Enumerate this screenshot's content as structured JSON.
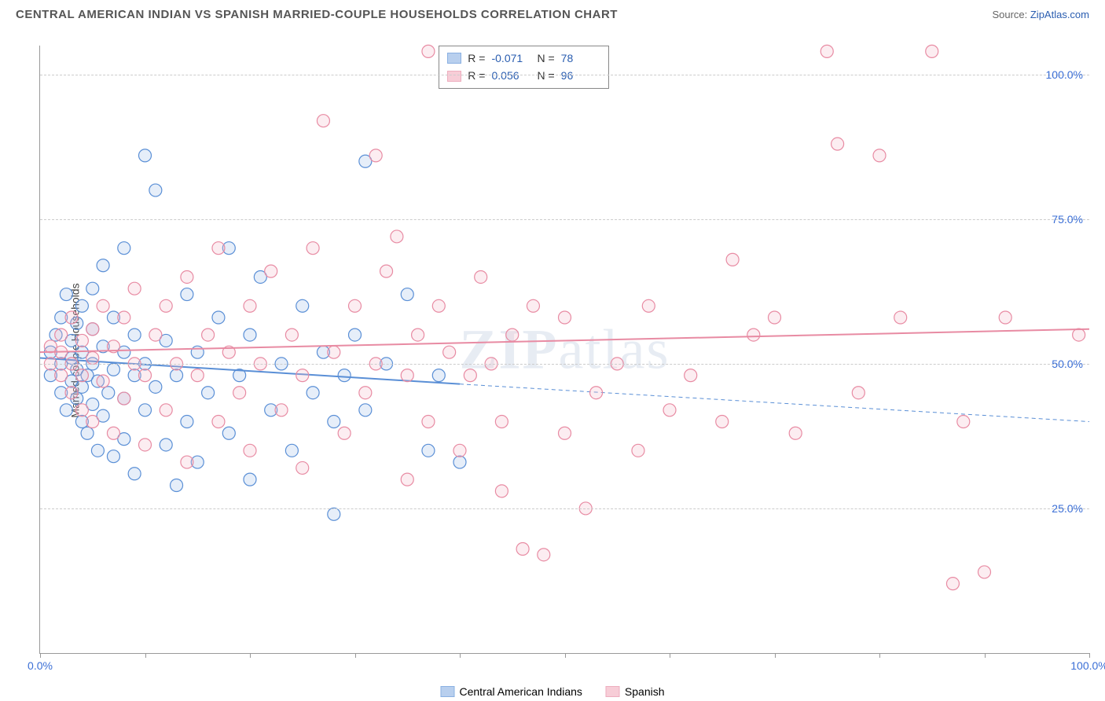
{
  "title": "CENTRAL AMERICAN INDIAN VS SPANISH MARRIED-COUPLE HOUSEHOLDS CORRELATION CHART",
  "source_prefix": "Source: ",
  "source_link": "ZipAtlas.com",
  "ylabel": "Married-couple Households",
  "watermark_a": "ZIP",
  "watermark_b": "atlas",
  "chart": {
    "type": "scatter",
    "background": "#ffffff",
    "grid_color": "#cccccc",
    "axis_color": "#999999",
    "xlim": [
      0,
      100
    ],
    "ylim": [
      0,
      105
    ],
    "yticks": [
      {
        "v": 25,
        "label": "25.0%"
      },
      {
        "v": 50,
        "label": "50.0%"
      },
      {
        "v": 75,
        "label": "75.0%"
      },
      {
        "v": 100,
        "label": "100.0%"
      }
    ],
    "xticks_major": [
      0,
      100
    ],
    "xtick_labels": {
      "0": "0.0%",
      "100": "100.0%"
    },
    "xticks_minor": [
      10,
      20,
      30,
      40,
      50,
      60,
      70,
      80,
      90
    ],
    "marker_radius": 8,
    "marker_stroke_width": 1.2,
    "marker_fill_opacity": 0.25,
    "trend_width": 2,
    "series": [
      {
        "id": "cai",
        "label": "Central American Indians",
        "color_stroke": "#5a8fd6",
        "color_fill": "#9bbce8",
        "R": "-0.071",
        "N": "78",
        "trend": {
          "x1": 0,
          "y1": 51,
          "x2_solid": 40,
          "y2_solid": 46.5,
          "x2_dash": 100,
          "y2_dash": 40
        },
        "points": [
          [
            1,
            48
          ],
          [
            1,
            52
          ],
          [
            1.5,
            55
          ],
          [
            2,
            45
          ],
          [
            2,
            50
          ],
          [
            2,
            58
          ],
          [
            2.5,
            42
          ],
          [
            2.5,
            62
          ],
          [
            3,
            47
          ],
          [
            3,
            51
          ],
          [
            3,
            54
          ],
          [
            3.5,
            44
          ],
          [
            3.5,
            49
          ],
          [
            3.5,
            57
          ],
          [
            4,
            40
          ],
          [
            4,
            46
          ],
          [
            4,
            52
          ],
          [
            4,
            60
          ],
          [
            4.5,
            38
          ],
          [
            4.5,
            48
          ],
          [
            5,
            43
          ],
          [
            5,
            50
          ],
          [
            5,
            56
          ],
          [
            5,
            63
          ],
          [
            5.5,
            35
          ],
          [
            5.5,
            47
          ],
          [
            6,
            41
          ],
          [
            6,
            53
          ],
          [
            6,
            67
          ],
          [
            6.5,
            45
          ],
          [
            7,
            34
          ],
          [
            7,
            49
          ],
          [
            7,
            58
          ],
          [
            8,
            37
          ],
          [
            8,
            44
          ],
          [
            8,
            52
          ],
          [
            8,
            70
          ],
          [
            9,
            31
          ],
          [
            9,
            48
          ],
          [
            9,
            55
          ],
          [
            10,
            86
          ],
          [
            10,
            42
          ],
          [
            10,
            50
          ],
          [
            11,
            80
          ],
          [
            11,
            46
          ],
          [
            12,
            36
          ],
          [
            12,
            54
          ],
          [
            13,
            29
          ],
          [
            13,
            48
          ],
          [
            14,
            40
          ],
          [
            14,
            62
          ],
          [
            15,
            33
          ],
          [
            15,
            52
          ],
          [
            16,
            45
          ],
          [
            17,
            58
          ],
          [
            18,
            70
          ],
          [
            18,
            38
          ],
          [
            19,
            48
          ],
          [
            20,
            30
          ],
          [
            20,
            55
          ],
          [
            21,
            65
          ],
          [
            22,
            42
          ],
          [
            23,
            50
          ],
          [
            24,
            35
          ],
          [
            25,
            60
          ],
          [
            26,
            45
          ],
          [
            27,
            52
          ],
          [
            28,
            40
          ],
          [
            28,
            24
          ],
          [
            29,
            48
          ],
          [
            30,
            55
          ],
          [
            31,
            85
          ],
          [
            31,
            42
          ],
          [
            33,
            50
          ],
          [
            35,
            62
          ],
          [
            37,
            35
          ],
          [
            38,
            48
          ],
          [
            40,
            33
          ]
        ]
      },
      {
        "id": "spanish",
        "label": "Spanish",
        "color_stroke": "#e88ba3",
        "color_fill": "#f5b8c7",
        "R": "0.056",
        "N": "96",
        "trend": {
          "x1": 0,
          "y1": 52,
          "x2_solid": 100,
          "y2_solid": 56,
          "x2_dash": 100,
          "y2_dash": 56
        },
        "points": [
          [
            1,
            50
          ],
          [
            1,
            53
          ],
          [
            2,
            48
          ],
          [
            2,
            55
          ],
          [
            2,
            52
          ],
          [
            3,
            45
          ],
          [
            3,
            58
          ],
          [
            3,
            50
          ],
          [
            4,
            42
          ],
          [
            4,
            54
          ],
          [
            4,
            48
          ],
          [
            5,
            40
          ],
          [
            5,
            56
          ],
          [
            5,
            51
          ],
          [
            6,
            47
          ],
          [
            6,
            60
          ],
          [
            7,
            38
          ],
          [
            7,
            53
          ],
          [
            8,
            44
          ],
          [
            8,
            58
          ],
          [
            9,
            50
          ],
          [
            9,
            63
          ],
          [
            10,
            36
          ],
          [
            10,
            48
          ],
          [
            11,
            55
          ],
          [
            12,
            42
          ],
          [
            12,
            60
          ],
          [
            13,
            50
          ],
          [
            14,
            33
          ],
          [
            14,
            65
          ],
          [
            15,
            48
          ],
          [
            16,
            55
          ],
          [
            17,
            40
          ],
          [
            17,
            70
          ],
          [
            18,
            52
          ],
          [
            19,
            45
          ],
          [
            20,
            60
          ],
          [
            20,
            35
          ],
          [
            21,
            50
          ],
          [
            22,
            66
          ],
          [
            23,
            42
          ],
          [
            24,
            55
          ],
          [
            25,
            32
          ],
          [
            25,
            48
          ],
          [
            26,
            70
          ],
          [
            27,
            92
          ],
          [
            28,
            52
          ],
          [
            29,
            38
          ],
          [
            30,
            60
          ],
          [
            31,
            45
          ],
          [
            32,
            86
          ],
          [
            32,
            50
          ],
          [
            33,
            66
          ],
          [
            34,
            72
          ],
          [
            35,
            48
          ],
          [
            35,
            30
          ],
          [
            36,
            55
          ],
          [
            37,
            40
          ],
          [
            37,
            104
          ],
          [
            38,
            60
          ],
          [
            39,
            52
          ],
          [
            40,
            35
          ],
          [
            41,
            48
          ],
          [
            42,
            65
          ],
          [
            43,
            50
          ],
          [
            44,
            28
          ],
          [
            44,
            40
          ],
          [
            45,
            55
          ],
          [
            46,
            18
          ],
          [
            47,
            60
          ],
          [
            48,
            17
          ],
          [
            50,
            38
          ],
          [
            50,
            58
          ],
          [
            52,
            25
          ],
          [
            53,
            45
          ],
          [
            55,
            50
          ],
          [
            57,
            35
          ],
          [
            58,
            60
          ],
          [
            60,
            42
          ],
          [
            62,
            48
          ],
          [
            65,
            40
          ],
          [
            66,
            68
          ],
          [
            68,
            55
          ],
          [
            70,
            58
          ],
          [
            72,
            38
          ],
          [
            75,
            104
          ],
          [
            76,
            88
          ],
          [
            78,
            45
          ],
          [
            80,
            86
          ],
          [
            82,
            58
          ],
          [
            85,
            104
          ],
          [
            87,
            12
          ],
          [
            88,
            40
          ],
          [
            90,
            14
          ],
          [
            92,
            58
          ],
          [
            99,
            55
          ]
        ]
      }
    ]
  },
  "legend": {
    "r_label": "R =",
    "n_label": "N ="
  }
}
